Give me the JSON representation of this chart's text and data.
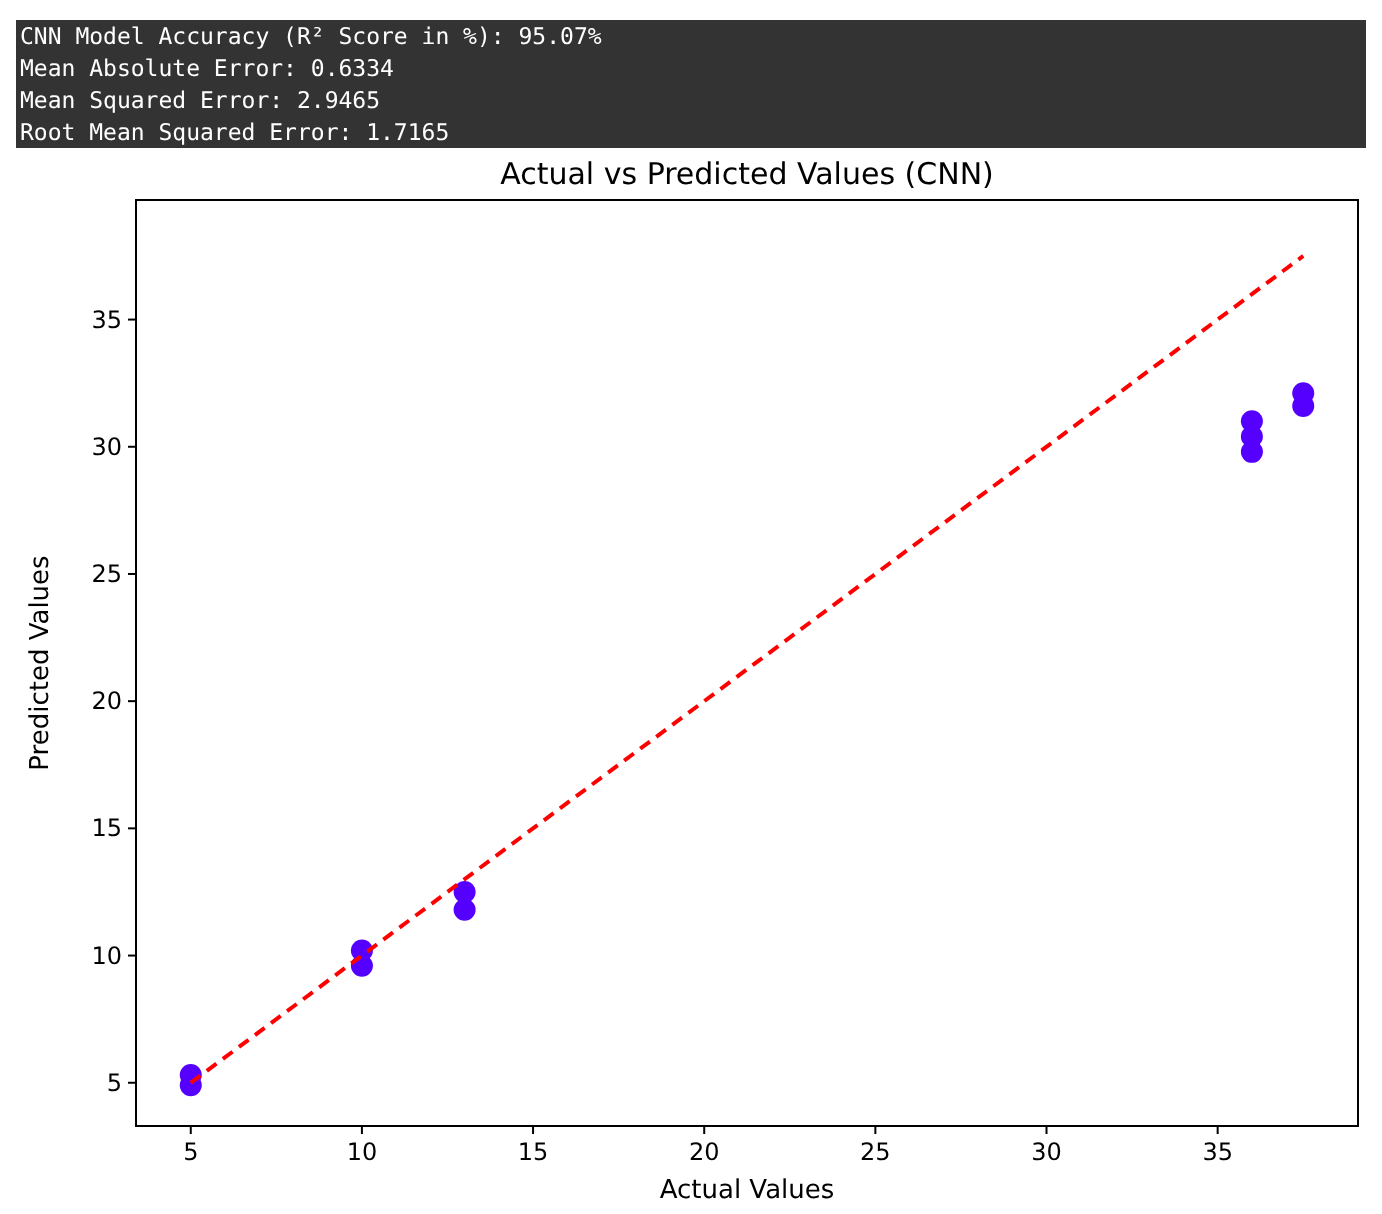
{
  "chart_data": {
    "type": "scatter",
    "title": "Actual vs Predicted Values (CNN)",
    "xlabel": "Actual Values",
    "ylabel": "Predicted Values",
    "annotations": [
      "CNN Model Accuracy (R² Score in %): 95.07%",
      "Mean Absolute Error: 0.6334",
      "Mean Squared Error: 2.9465",
      "Root Mean Squared Error: 1.7165"
    ],
    "xlim": [
      3.4,
      39.1
    ],
    "xticks": [
      5,
      10,
      15,
      20,
      25,
      30,
      35
    ],
    "ylim": [
      3.3,
      39.7
    ],
    "yticks": [
      5,
      10,
      15,
      20,
      25,
      30,
      35
    ],
    "grid": false,
    "series": [
      {
        "color": "#5500ff",
        "marker": "circle",
        "x": [
          5,
          5,
          10,
          10,
          13,
          13,
          36,
          36,
          36,
          37.5,
          37.5
        ],
        "values": [
          4.9,
          5.3,
          9.6,
          10.2,
          11.8,
          12.5,
          29.8,
          30.4,
          31,
          31.6,
          32.1
        ]
      },
      {
        "type": "line",
        "color": "#ff0000",
        "line_style": "dashed",
        "x": [
          5,
          37.5
        ],
        "values": [
          5,
          37.5
        ]
      }
    ]
  }
}
